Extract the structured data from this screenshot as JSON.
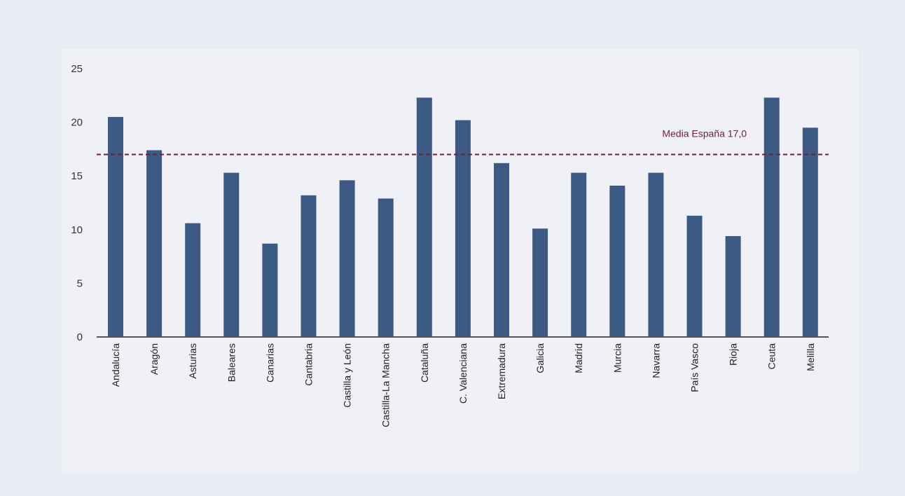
{
  "chart_data": {
    "type": "bar",
    "title": "",
    "xlabel": "",
    "ylabel": "",
    "ylim": [
      0,
      25
    ],
    "yticks": [
      0,
      5,
      10,
      15,
      20,
      25
    ],
    "grid": false,
    "categories": [
      "Andalucía",
      "Aragón",
      "Asturias",
      "Baleares",
      "Canarias",
      "Cantabria",
      "Castilla y León",
      "Castilla-La Mancha",
      "Cataluña",
      "C. Valenciana",
      "Extremadura",
      "Galicia",
      "Madrid",
      "Murcia",
      "Navarra",
      "País Vasco",
      "Rioja",
      "Ceuta",
      "Melilla"
    ],
    "values": [
      20.5,
      17.4,
      10.6,
      15.3,
      8.7,
      13.2,
      14.6,
      12.9,
      22.3,
      20.2,
      16.2,
      10.1,
      15.3,
      14.1,
      15.3,
      11.3,
      9.4,
      22.3,
      19.5
    ],
    "reference_line": {
      "value": 17.0,
      "label": "Media España 17,0"
    },
    "colors": {
      "bar": "#3d5a84",
      "reference": "#6e1e3e",
      "axis": "#555555"
    }
  }
}
